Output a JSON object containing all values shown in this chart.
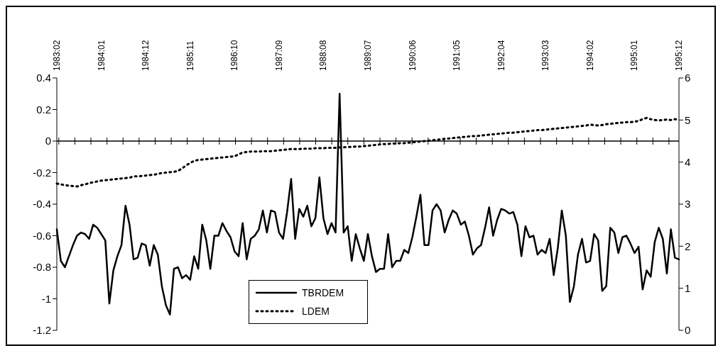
{
  "chart_data": {
    "type": "line",
    "categories": [
      "1983:02",
      null,
      null,
      null,
      null,
      null,
      null,
      null,
      null,
      null,
      null,
      "1984:01",
      null,
      null,
      null,
      null,
      null,
      null,
      null,
      null,
      null,
      null,
      "1984:12",
      null,
      null,
      null,
      null,
      null,
      null,
      null,
      null,
      null,
      null,
      "1985:11",
      null,
      null,
      null,
      null,
      null,
      null,
      null,
      null,
      null,
      null,
      "1986:10",
      null,
      null,
      null,
      null,
      null,
      null,
      null,
      null,
      null,
      null,
      "1987:09",
      null,
      null,
      null,
      null,
      null,
      null,
      null,
      null,
      null,
      null,
      "1988:08",
      null,
      null,
      null,
      null,
      null,
      null,
      null,
      null,
      null,
      null,
      "1989:07",
      null,
      null,
      null,
      null,
      null,
      null,
      null,
      null,
      null,
      null,
      "1990:06",
      null,
      null,
      null,
      null,
      null,
      null,
      null,
      null,
      null,
      null,
      "1991:05",
      null,
      null,
      null,
      null,
      null,
      null,
      null,
      null,
      null,
      null,
      "1992:04",
      null,
      null,
      null,
      null,
      null,
      null,
      null,
      null,
      null,
      null,
      "1993:03",
      null,
      null,
      null,
      null,
      null,
      null,
      null,
      null,
      null,
      null,
      "1994:02",
      null,
      null,
      null,
      null,
      null,
      null,
      null,
      null,
      null,
      null,
      "1995:01",
      null,
      null,
      null,
      null,
      null,
      null,
      null,
      null,
      null,
      null,
      "1995:12"
    ],
    "series": [
      {
        "name": "TBRDEM",
        "color": "#000000",
        "line_style": "solid",
        "values": [
          -0.56,
          -0.76,
          -0.8,
          -0.73,
          -0.66,
          -0.6,
          -0.58,
          -0.59,
          -0.62,
          -0.53,
          -0.55,
          -0.59,
          -0.63,
          -1.03,
          -0.82,
          -0.73,
          -0.66,
          -0.41,
          -0.53,
          -0.75,
          -0.74,
          -0.65,
          -0.66,
          -0.79,
          -0.66,
          -0.72,
          -0.92,
          -1.04,
          -1.1,
          -0.81,
          -0.8,
          -0.87,
          -0.85,
          -0.88,
          -0.73,
          -0.81,
          -0.53,
          -0.63,
          -0.81,
          -0.6,
          -0.6,
          -0.52,
          -0.57,
          -0.61,
          -0.7,
          -0.73,
          -0.52,
          -0.75,
          -0.62,
          -0.6,
          -0.56,
          -0.44,
          -0.58,
          -0.44,
          -0.45,
          -0.58,
          -0.62,
          -0.45,
          -0.24,
          -0.62,
          -0.43,
          -0.48,
          -0.41,
          -0.54,
          -0.49,
          -0.23,
          -0.49,
          -0.59,
          -0.52,
          -0.58,
          0.3,
          -0.58,
          -0.54,
          -0.76,
          -0.59,
          -0.68,
          -0.76,
          -0.59,
          -0.73,
          -0.83,
          -0.81,
          -0.81,
          -0.59,
          -0.8,
          -0.76,
          -0.76,
          -0.69,
          -0.71,
          -0.61,
          -0.48,
          -0.34,
          -0.66,
          -0.66,
          -0.44,
          -0.4,
          -0.44,
          -0.58,
          -0.5,
          -0.44,
          -0.46,
          -0.53,
          -0.51,
          -0.6,
          -0.72,
          -0.68,
          -0.66,
          -0.55,
          -0.42,
          -0.6,
          -0.5,
          -0.43,
          -0.44,
          -0.46,
          -0.45,
          -0.53,
          -0.73,
          -0.54,
          -0.61,
          -0.6,
          -0.72,
          -0.69,
          -0.71,
          -0.62,
          -0.85,
          -0.68,
          -0.44,
          -0.6,
          -1.02,
          -0.92,
          -0.72,
          -0.62,
          -0.77,
          -0.76,
          -0.59,
          -0.63,
          -0.95,
          -0.92,
          -0.55,
          -0.58,
          -0.71,
          -0.61,
          -0.6,
          -0.65,
          -0.71,
          -0.67,
          -0.94,
          -0.82,
          -0.86,
          -0.64,
          -0.55,
          -0.62,
          -0.84,
          -0.56,
          -0.74,
          -0.75
        ]
      },
      {
        "name": "LDEM",
        "color": "#000000",
        "line_style": "dotted",
        "axis": "y2",
        "values": [
          3.49,
          3.47,
          3.45,
          3.44,
          3.43,
          3.42,
          3.45,
          3.47,
          3.5,
          3.52,
          3.54,
          3.56,
          3.57,
          3.58,
          3.59,
          3.6,
          3.61,
          3.62,
          3.63,
          3.66,
          3.66,
          3.67,
          3.68,
          3.69,
          3.7,
          3.72,
          3.74,
          3.75,
          3.76,
          3.77,
          3.79,
          3.85,
          3.92,
          3.98,
          4.03,
          4.05,
          4.06,
          4.07,
          4.08,
          4.09,
          4.1,
          4.11,
          4.12,
          4.13,
          4.14,
          4.18,
          4.23,
          4.24,
          4.25,
          4.25,
          4.25,
          4.26,
          4.26,
          4.26,
          4.27,
          4.28,
          4.29,
          4.3,
          4.31,
          4.31,
          4.31,
          4.32,
          4.32,
          4.32,
          4.33,
          4.33,
          4.33,
          4.34,
          4.34,
          4.34,
          4.35,
          4.35,
          4.36,
          4.36,
          4.37,
          4.37,
          4.38,
          4.39,
          4.4,
          4.41,
          4.42,
          4.43,
          4.43,
          4.44,
          4.44,
          4.45,
          4.45,
          4.46,
          4.47,
          4.48,
          4.49,
          4.5,
          4.51,
          4.52,
          4.53,
          4.54,
          4.55,
          4.56,
          4.57,
          4.58,
          4.59,
          4.6,
          4.61,
          4.62,
          4.62,
          4.63,
          4.64,
          4.65,
          4.66,
          4.67,
          4.68,
          4.69,
          4.7,
          4.7,
          4.71,
          4.72,
          4.73,
          4.74,
          4.75,
          4.76,
          4.76,
          4.77,
          4.78,
          4.79,
          4.8,
          4.81,
          4.82,
          4.83,
          4.84,
          4.85,
          4.86,
          4.87,
          4.89,
          4.88,
          4.87,
          4.88,
          4.9,
          4.91,
          4.92,
          4.93,
          4.94,
          4.95,
          4.95,
          4.96,
          4.98,
          5.02,
          5.05,
          5.02,
          5.0,
          4.99,
          5.0,
          5.01,
          5.0,
          5.02,
          5.01
        ]
      }
    ],
    "ylim": [
      -1.2,
      0.4
    ],
    "yticks": [
      -1.2,
      -1,
      -0.8,
      -0.6,
      -0.4,
      -0.2,
      0,
      0.2,
      0.4
    ],
    "y2lim": [
      0,
      6
    ],
    "y2ticks": [
      0,
      1,
      2,
      3,
      4,
      5,
      6
    ],
    "ref_lines": [
      {
        "axis": "y",
        "value": 0
      }
    ],
    "legend": "bottom left",
    "marker": "none",
    "grid": false
  }
}
